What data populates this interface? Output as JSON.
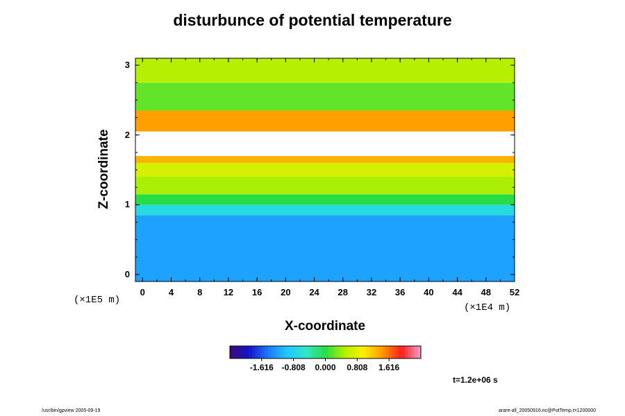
{
  "chart_data": {
    "type": "heatmap",
    "title": "disturbunce of potential temperature",
    "xlabel": "X-coordinate",
    "ylabel": "Z-coordinate",
    "x_unit": "(×1E4 m)",
    "z_unit": "(×1E5 m)",
    "x_ticks": [
      "0",
      "4",
      "8",
      "12",
      "16",
      "20",
      "24",
      "28",
      "32",
      "36",
      "40",
      "44",
      "48",
      "52"
    ],
    "y_ticks": [
      "0",
      "1",
      "2",
      "3"
    ],
    "xlim": [
      -1,
      52
    ],
    "ylim": [
      -0.1,
      3.1
    ],
    "colorbar_ticks": [
      "-1.616",
      "-0.808",
      "0.000",
      "0.808",
      "1.616"
    ],
    "colorbar_range": [
      -2.424,
      2.424
    ],
    "colormap": [
      "#3a0a78",
      "#1414c8",
      "#1e78ff",
      "#1ec8ff",
      "#32e6c8",
      "#28dc46",
      "#b4f000",
      "#fff000",
      "#ff9600",
      "#ff1e1e",
      "#f0a0c8"
    ],
    "layers": [
      {
        "z": [
          -0.1,
          0.85
        ],
        "value": -1.2
      },
      {
        "z": [
          0.85,
          1.0
        ],
        "value": -0.7
      },
      {
        "z": [
          1.0,
          1.15
        ],
        "value": 0.0
      },
      {
        "z": [
          1.15,
          1.4
        ],
        "value": 0.45
      },
      {
        "z": [
          1.4,
          1.6
        ],
        "value": 0.7
      },
      {
        "z": [
          1.6,
          1.7
        ],
        "value": 1.3
      },
      {
        "z": [
          1.7,
          2.05
        ],
        "value": null
      },
      {
        "z": [
          2.05,
          2.35
        ],
        "value": 1.4
      },
      {
        "z": [
          2.35,
          2.75
        ],
        "value": 0.2
      },
      {
        "z": [
          2.75,
          3.1
        ],
        "value": 0.5
      }
    ],
    "time_label": "t=1.2e+06 s",
    "footer_left": "/usr/bin/gpview 2005-09-19",
    "footer_right": "arare-all_20050916.nc@PotTemp,t=1200000"
  }
}
